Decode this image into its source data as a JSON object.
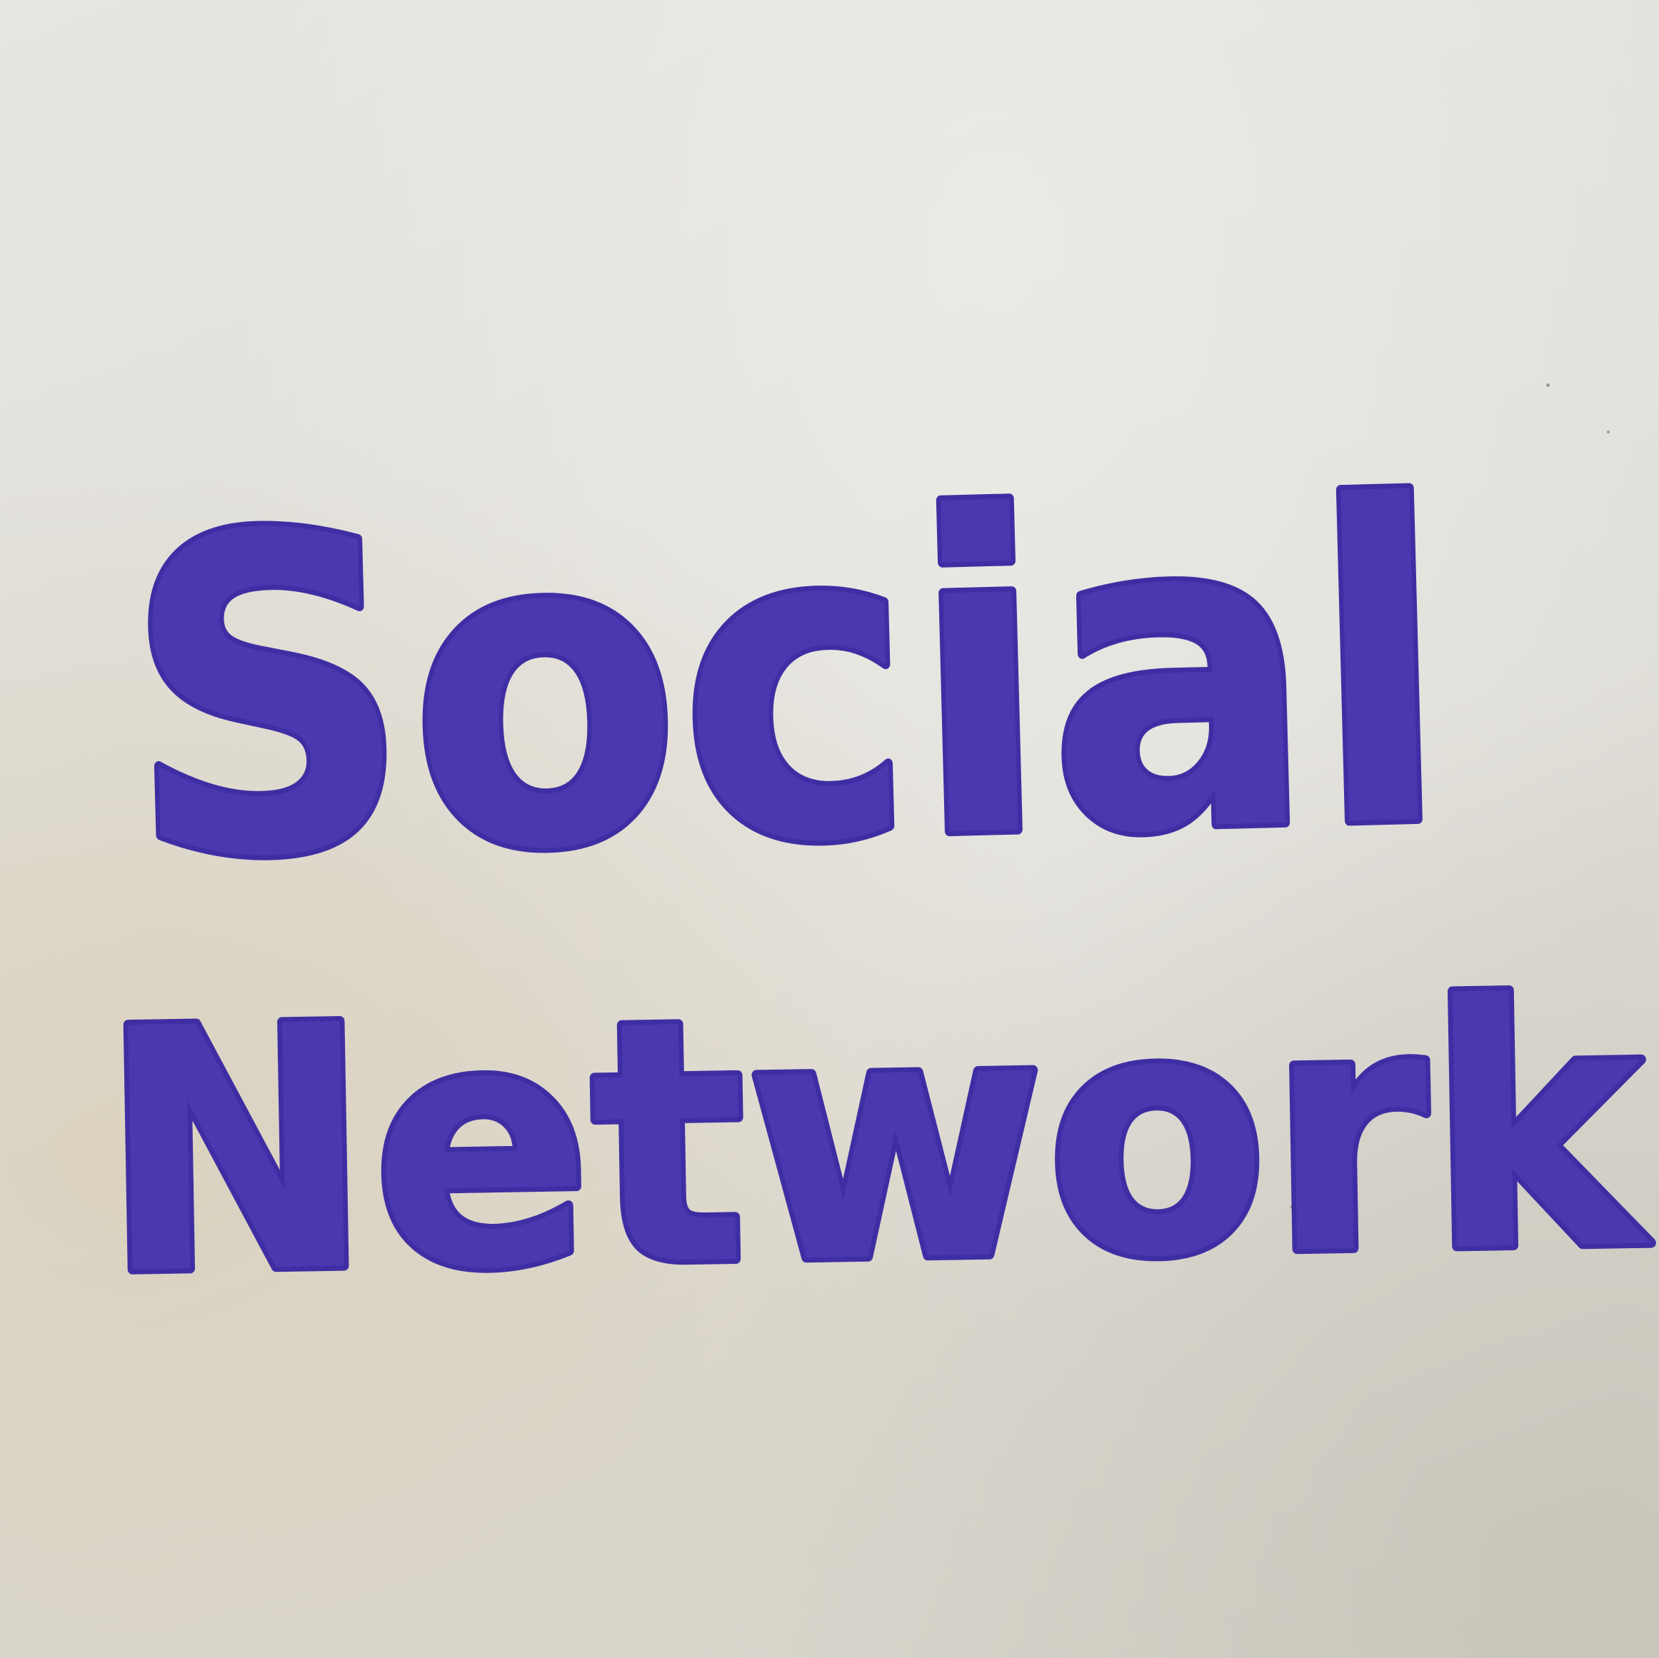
{
  "handwritten_text": {
    "line1": "Social",
    "line2": "Network",
    "ink_color": "#4a38b0"
  },
  "paper_color": "#e2e0da"
}
